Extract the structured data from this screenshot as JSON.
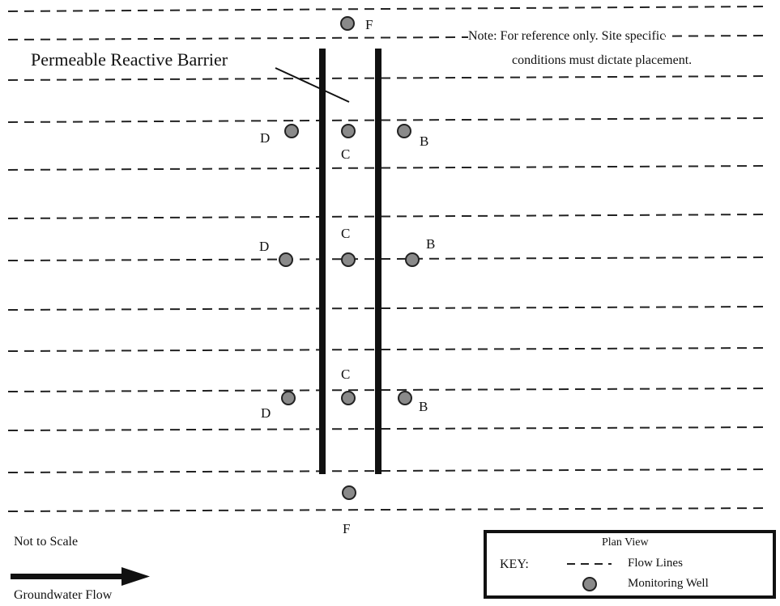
{
  "title_label": "Permeable Reactive Barrier",
  "note": {
    "line1": "Note: For reference only.  Site specific",
    "line2": "conditions must dictate placement."
  },
  "scale_text": "Not to Scale",
  "flow_text": "Groundwater Flow",
  "key": {
    "heading": "Plan View",
    "key_label": "KEY:",
    "flow_lines_label": "Flow Lines",
    "monitoring_well_label": "Monitoring Well"
  },
  "wells": [
    {
      "id": "F-top",
      "label": "F"
    },
    {
      "id": "D1",
      "label": "D"
    },
    {
      "id": "C1",
      "label": "C"
    },
    {
      "id": "B1",
      "label": "B"
    },
    {
      "id": "D2",
      "label": "D"
    },
    {
      "id": "C2",
      "label": "C"
    },
    {
      "id": "B2",
      "label": "B"
    },
    {
      "id": "D3",
      "label": "D"
    },
    {
      "id": "C3",
      "label": "C"
    },
    {
      "id": "B3",
      "label": "B"
    },
    {
      "id": "F-bottom",
      "label": "F"
    }
  ],
  "colors": {
    "ink": "#111111",
    "well_fill": "#8a8a8a",
    "well_stroke": "#222222"
  }
}
